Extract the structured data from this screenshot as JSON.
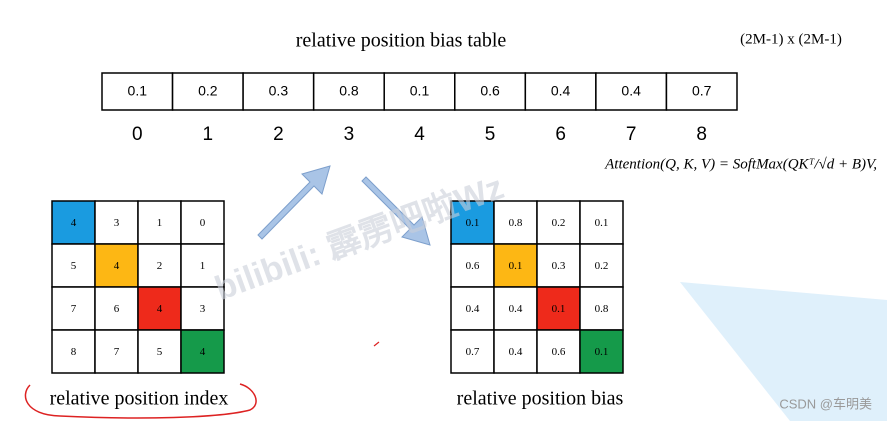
{
  "header": {
    "title": "relative position bias table",
    "size_note": "(2M-1) x (2M-1)"
  },
  "bias_table": {
    "values": [
      "0.1",
      "0.2",
      "0.3",
      "0.8",
      "0.1",
      "0.6",
      "0.4",
      "0.4",
      "0.7"
    ],
    "indices": [
      "0",
      "1",
      "2",
      "3",
      "4",
      "5",
      "6",
      "7",
      "8"
    ]
  },
  "formula": "Attention(Q, K, V) = SoftMax(QKᵀ/√d + B)V,",
  "index_grid": {
    "rows": [
      [
        "4",
        "3",
        "1",
        "0"
      ],
      [
        "5",
        "4",
        "2",
        "1"
      ],
      [
        "7",
        "6",
        "4",
        "3"
      ],
      [
        "8",
        "7",
        "5",
        "4"
      ]
    ],
    "label": "relative position index"
  },
  "bias_grid": {
    "rows": [
      [
        "0.1",
        "0.8",
        "0.2",
        "0.1"
      ],
      [
        "0.6",
        "0.1",
        "0.3",
        "0.2"
      ],
      [
        "0.4",
        "0.4",
        "0.1",
        "0.8"
      ],
      [
        "0.7",
        "0.4",
        "0.6",
        "0.1"
      ]
    ],
    "label": "relative position bias"
  },
  "watermark": "bilibili: 霹雳吧啦Wz",
  "credit": "CSDN @车明美"
}
